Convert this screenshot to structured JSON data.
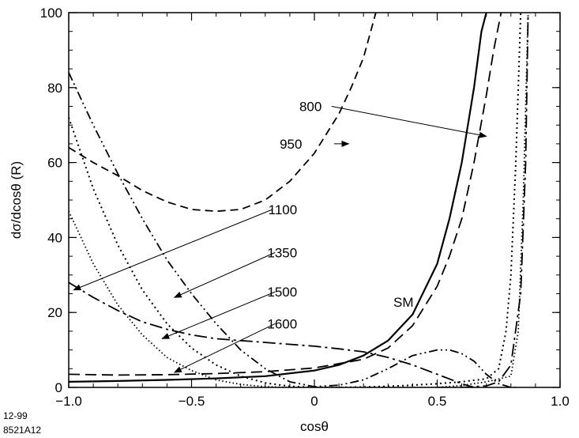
{
  "chart_data": {
    "type": "line",
    "title": "",
    "xlabel": "cosθ",
    "ylabel": "dσ/dcosθ  (R)",
    "xlim": [
      -1.0,
      1.0
    ],
    "ylim": [
      0,
      100
    ],
    "xticks": [
      -1.0,
      -0.5,
      0,
      0.5,
      1.0
    ],
    "xtick_labels": [
      "−1.0",
      "−0.5",
      "0",
      "0.5",
      "1.0"
    ],
    "yticks": [
      0,
      20,
      40,
      60,
      80,
      100
    ],
    "ytick_labels": [
      "0",
      "20",
      "40",
      "60",
      "80",
      "100"
    ],
    "grid": false,
    "legend": "none",
    "series": [
      {
        "name": "SM",
        "style": "solid",
        "x": [
          -1.0,
          -0.8,
          -0.6,
          -0.4,
          -0.2,
          0.0,
          0.1,
          0.2,
          0.3,
          0.4,
          0.5,
          0.55,
          0.6,
          0.65,
          0.68,
          0.7
        ],
        "y": [
          1.5,
          1.7,
          2.0,
          2.4,
          3.0,
          4.5,
          6.0,
          8.5,
          12.5,
          19.5,
          33,
          45,
          60,
          80,
          95,
          100
        ]
      },
      {
        "name": "800",
        "style": "long-dash",
        "x": [
          -1.0,
          -0.8,
          -0.6,
          -0.4,
          -0.2,
          0.0,
          0.2,
          0.3,
          0.4,
          0.5,
          0.55,
          0.6,
          0.65,
          0.7,
          0.73,
          0.76
        ],
        "y": [
          3.5,
          3.3,
          3.4,
          3.7,
          4.2,
          5.2,
          7.5,
          10.5,
          16.5,
          27,
          35,
          45,
          60,
          78,
          90,
          100
        ]
      },
      {
        "name": "950",
        "style": "dash",
        "x": [
          -1.0,
          -0.9,
          -0.8,
          -0.7,
          -0.6,
          -0.5,
          -0.4,
          -0.3,
          -0.2,
          -0.1,
          0.0,
          0.1,
          0.15,
          0.2,
          0.25
        ],
        "y": [
          64,
          60,
          56.5,
          52.5,
          49.5,
          47.5,
          47,
          47.5,
          50,
          55,
          62.5,
          73,
          80,
          88,
          100
        ]
      },
      {
        "name": "1100",
        "style": "long-dash-dot",
        "x": [
          -1.0,
          -0.9,
          -0.8,
          -0.7,
          -0.6,
          -0.5,
          -0.4,
          -0.3,
          -0.2,
          -0.1,
          0.0,
          0.1,
          0.2,
          0.3,
          0.4,
          0.5,
          0.6,
          0.65
        ],
        "y": [
          28,
          24,
          20.5,
          17.5,
          15.5,
          14,
          13,
          12.5,
          12,
          11.5,
          11,
          10.3,
          9.5,
          8,
          6,
          3.5,
          1,
          0
        ]
      },
      {
        "name": "1350",
        "style": "dash-dot-dot",
        "x": [
          -1.0,
          -0.9,
          -0.8,
          -0.7,
          -0.6,
          -0.5,
          -0.4,
          -0.3,
          -0.2,
          -0.1,
          0.0,
          0.1,
          0.2,
          0.3,
          0.4,
          0.5,
          0.55,
          0.6,
          0.65,
          0.7,
          0.75,
          0.8,
          0.83
        ],
        "y": [
          84,
          70,
          57,
          45,
          34,
          25,
          17,
          10,
          5,
          1.5,
          0.2,
          0.6,
          2,
          5,
          8.5,
          10,
          10,
          9,
          7,
          3.5,
          1,
          0,
          0
        ]
      },
      {
        "name": "1500",
        "style": "dot",
        "x": [
          -1.0,
          -0.9,
          -0.8,
          -0.7,
          -0.6,
          -0.5,
          -0.4,
          -0.3,
          -0.2,
          -0.1,
          0.0,
          0.1,
          0.2,
          0.3,
          0.4,
          0.5,
          0.6,
          0.7,
          0.75,
          0.78,
          0.8,
          0.82,
          0.84
        ],
        "y": [
          72,
          53,
          38,
          26,
          17,
          10.5,
          6,
          3,
          1.2,
          0.3,
          0,
          0,
          0.1,
          0.3,
          0.6,
          1.0,
          1.5,
          2.3,
          5,
          15,
          30,
          60,
          100
        ]
      },
      {
        "name": "1600",
        "style": "fine-dot",
        "x": [
          -1.0,
          -0.9,
          -0.8,
          -0.7,
          -0.6,
          -0.5,
          -0.4,
          -0.3,
          -0.2,
          -0.1,
          0.0,
          0.1,
          0.2,
          0.3,
          0.4,
          0.5,
          0.6,
          0.7,
          0.8,
          0.83,
          0.85,
          0.87
        ],
        "y": [
          47,
          33,
          22,
          14,
          8,
          4.5,
          2,
          0.8,
          0.2,
          0,
          0,
          0,
          0,
          0,
          0,
          0,
          0.5,
          1.5,
          3,
          15,
          50,
          100
        ]
      },
      {
        "name": "",
        "style": "long-dash-dot",
        "x": [
          0.5,
          0.6,
          0.7,
          0.75,
          0.8,
          0.84,
          0.86,
          0.87
        ],
        "y": [
          0,
          0,
          0.4,
          1.5,
          6,
          25,
          60,
          100
        ]
      }
    ],
    "annotations": [
      {
        "label": "800",
        "text_at": [
          0.03,
          75
        ],
        "arrow_from": [
          0.07,
          75
        ],
        "arrow_to": [
          0.7,
          67
        ]
      },
      {
        "label": "950",
        "text_at": [
          -0.05,
          65
        ],
        "arrow_from": [
          0.08,
          65
        ],
        "arrow_to": [
          0.14,
          65
        ]
      },
      {
        "label": "1100",
        "text_at": [
          -0.07,
          47.5
        ],
        "arrow_from": [
          -0.17,
          47.5
        ],
        "arrow_to": [
          -0.98,
          26
        ]
      },
      {
        "label": "1350",
        "text_at": [
          -0.07,
          36
        ],
        "arrow_from": [
          -0.16,
          36
        ],
        "arrow_to": [
          -0.57,
          24
        ]
      },
      {
        "label": "1500",
        "text_at": [
          -0.07,
          25.5
        ],
        "arrow_from": [
          -0.16,
          25.5
        ],
        "arrow_to": [
          -0.62,
          13
        ]
      },
      {
        "label": "1600",
        "text_at": [
          -0.07,
          17
        ],
        "arrow_from": [
          -0.16,
          17
        ],
        "arrow_to": [
          -0.57,
          4
        ]
      }
    ],
    "labels": {
      "sm": "SM"
    }
  },
  "footer": {
    "date": "12-99",
    "code": "8521A12"
  }
}
